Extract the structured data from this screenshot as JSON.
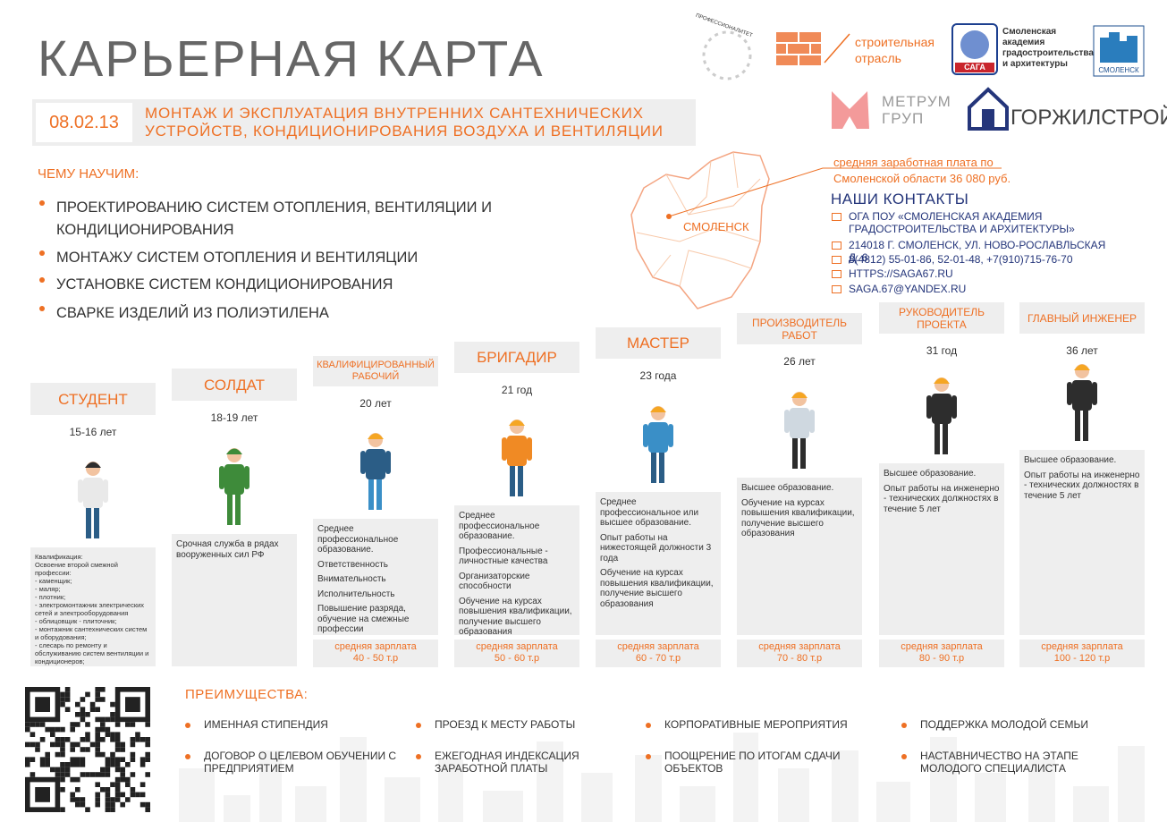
{
  "header": {
    "title": "КАРЬЕРНАЯ КАРТА",
    "code": "08.02.13",
    "specialty_lines": [
      "МОНТАЖ И ЭКСПЛУАТАЦИЯ ВНУТРЕННИХ САНТЕХНИЧЕСКИХ",
      "УСТРОЙСТВ, КОНДИЦИОНИРОВАНИЯ ВОЗДУХА И ВЕНТИЛЯЦИИ"
    ]
  },
  "logos": {
    "professionalitet": "ПРОФЕССИОНАЛИТЕТ",
    "industry_lines": [
      "строительная",
      "отрасль"
    ],
    "saga": "САГА",
    "academy_lines": [
      "Смоленская",
      "академия",
      "градостроительства",
      "и архитектуры"
    ],
    "ssk": "СМОЛЕНСК",
    "metrum_lines": [
      "МЕТРУМ",
      "ГРУП"
    ],
    "gorzhilstroy": "ГОРЖИЛСТРОЙ"
  },
  "learn": {
    "heading": "ЧЕМУ НАУЧИМ:",
    "items": [
      "ПРОЕКТИРОВАНИЮ СИСТЕМ ОТОПЛЕНИЯ, ВЕНТИЛЯЦИИ И КОНДИЦИОНИРОВАНИЯ",
      "МОНТАЖУ СИСТЕМ ОТОПЛЕНИЯ И ВЕНТИЛЯЦИИ",
      "УСТАНОВКЕ СИСТЕМ КОНДИЦИОНИРОВАНИЯ",
      "СВАРКЕ ИЗДЕЛИЙ ИЗ ПОЛИЭТИЛЕНА"
    ]
  },
  "map": {
    "city": "СМОЛЕНСК",
    "salary_note_lines": [
      "средняя заработная плата по",
      "Смоленской области 36 080 руб."
    ]
  },
  "contacts": {
    "heading": "НАШИ КОНТАКТЫ",
    "items": [
      "ОГА ПОУ «СМОЛЕНСКАЯ АКАДЕМИЯ ГРАДОСТРОИТЕЛЬСТВА И АРХИТЕКТУРЫ»",
      "214018 Г. СМОЛЕНСК, УЛ. НОВО-РОСЛАВЛЬСКАЯ Д. 6",
      "8(4812) 55-01-86, 52-01-48, +7(910)715-76-70",
      "HTTPS://SAGA67.RU",
      "SAGA.67@YANDEX.RU"
    ]
  },
  "stages": [
    {
      "title": "СТУДЕНТ",
      "age": "15-16 лет",
      "description": [
        "Квалификация:",
        "Освоение второй смежной профессии:",
        "- каменщик;",
        "- маляр;",
        "- плотник;",
        "- электромонтажник электрических сетей и электрооборудования",
        "- облицовщик - плиточник;",
        "- монтажник сантехнических систем и оборудования;",
        "- слесарь по ремонту и обслуживанию систем вентиляции и кондиционеров;"
      ]
    },
    {
      "title": "СОЛДАТ",
      "age": "18-19 лет",
      "description": [
        "Срочная служба в рядах вооруженных сил РФ"
      ]
    },
    {
      "title": "КВАЛИФИЦИРОВАННЫЙ РАБОЧИЙ",
      "age": "20 лет",
      "description": [
        "Среднее профессиональное образование.",
        "Ответственность",
        "Внимательность",
        "Исполнительность",
        "Повышение разряда, обучение на смежные профессии"
      ],
      "salary": {
        "label": "средняя зарплата",
        "range": "40 - 50 т.р"
      }
    },
    {
      "title": "БРИГАДИР",
      "age": "21 год",
      "description": [
        "Среднее профессиональное образование.",
        "Профессиональные - личностные качества",
        "Организаторские способности",
        "Обучение на курсах повышения квалификации, получение высшего образования"
      ],
      "salary": {
        "label": "средняя зарплата",
        "range": "50 - 60 т.р"
      }
    },
    {
      "title": "МАСТЕР",
      "age": "23 года",
      "description": [
        "Среднее профессиональное или высшее образование.",
        "Опыт работы на нижестоящей должности 3 года",
        "Обучение на курсах повышения квалификации, получение высшего образования"
      ],
      "salary": {
        "label": "средняя зарплата",
        "range": "60 - 70 т.р"
      }
    },
    {
      "title": "ПРОИЗВОДИТЕЛЬ РАБОТ",
      "age": "26 лет",
      "description": [
        "Высшее образование.",
        "Обучение на курсах повышения квалификации, получение высшего образования"
      ],
      "salary": {
        "label": "средняя зарплата",
        "range": "70 - 80 т.р"
      }
    },
    {
      "title": "РУКОВОДИТЕЛЬ ПРОЕКТА",
      "age": "31 год",
      "description": [
        "Высшее образование.",
        "Опыт работы на инженерно - технических должностях в течение 5 лет"
      ],
      "salary": {
        "label": "средняя зарплата",
        "range": "80 - 90 т.р"
      }
    },
    {
      "title": "ГЛАВНЫЙ ИНЖЕНЕР",
      "age": "36 лет",
      "description": [
        "Высшее образование.",
        "Опыт работы на инженерно - технических должностях в течение 5 лет"
      ],
      "salary": {
        "label": "средняя зарплата",
        "range": "100 - 120 т.р"
      }
    }
  ],
  "advantages": {
    "heading": "ПРЕИМУЩЕСТВА:",
    "items": [
      "ИМЕННАЯ СТИПЕНДИЯ",
      "ДОГОВОР О ЦЕЛЕВОМ ОБУЧЕНИИ С ПРЕДПРИЯТИЕМ",
      "ПРОЕЗД К МЕСТУ РАБОТЫ",
      "ЕЖЕГОДНАЯ ИНДЕКСАЦИЯ ЗАРАБОТНОЙ ПЛАТЫ",
      "КОРПОРАТИВНЫЕ МЕРОПРИЯТИЯ",
      "ПООЩРЕНИЕ ПО ИТОГАМ СДАЧИ ОБЪЕКТОВ",
      "ПОДДЕРЖКА МОЛОДОЙ СЕМЬИ",
      "НАСТАВНИЧЕСТВО НА ЭТАПЕ МОЛОДОГО СПЕЦИАЛИСТА"
    ]
  }
}
